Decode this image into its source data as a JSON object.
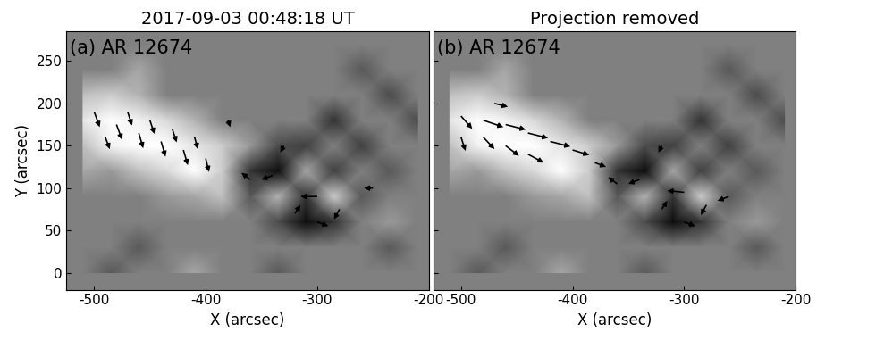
{
  "chart_data": [
    {
      "type": "magnetogram",
      "title": "2017-09-03 00:48:18 UT",
      "label": "(a) AR 12674",
      "x_label": "X (arcsec)",
      "y_label": "Y (arcsec)",
      "xlim": [
        -525,
        -200
      ],
      "xticks": [
        -500,
        -400,
        -300,
        -200
      ],
      "ylim": [
        -20,
        285
      ],
      "yticks": [
        0,
        50,
        100,
        150,
        200,
        250
      ],
      "color": "black",
      "bz_x": [
        -510,
        -485,
        -460,
        -435,
        -410,
        -385,
        -360,
        -335,
        -310,
        -285,
        -260,
        -235,
        -210
      ],
      "bz_y": [
        270,
        240,
        210,
        180,
        150,
        120,
        90,
        60,
        30,
        0
      ],
      "bz": [
        [
          0,
          0,
          0,
          0,
          0,
          0,
          0,
          0,
          0,
          0,
          0,
          0,
          0
        ],
        [
          0,
          0,
          0.3,
          0,
          0,
          0,
          0,
          0,
          0,
          0,
          -0.3,
          0,
          0
        ],
        [
          0.5,
          0.6,
          0.4,
          0,
          0,
          0,
          0,
          0,
          0,
          0,
          0,
          -0.4,
          0
        ],
        [
          0.8,
          1,
          0.9,
          0.7,
          0.4,
          0,
          0,
          0,
          0,
          -0.6,
          0,
          0,
          -0.4
        ],
        [
          0.5,
          0.9,
          1,
          1,
          0.8,
          0.6,
          0.2,
          -0.4,
          -0.5,
          0,
          -0.5,
          0,
          0
        ],
        [
          0.3,
          0.2,
          0.5,
          0.7,
          1,
          0.6,
          -0.6,
          -0.9,
          0.3,
          -0.5,
          0,
          -0.3,
          0
        ],
        [
          0,
          0,
          0,
          0.2,
          0.3,
          0.5,
          -0.3,
          0.4,
          -0.6,
          0.6,
          -0.3,
          0,
          0
        ],
        [
          0,
          0,
          0,
          0,
          0,
          0,
          0,
          -0.4,
          -0.9,
          -0.6,
          0,
          0.2,
          0
        ],
        [
          0,
          0,
          -0.3,
          0,
          0,
          0,
          0,
          0,
          0,
          0,
          0,
          -0.3,
          0
        ],
        [
          0,
          -0.3,
          0,
          0,
          0.3,
          0,
          0,
          -0.3,
          0,
          0,
          0,
          0,
          0
        ]
      ],
      "arrows": [
        [
          -500,
          190,
          5,
          -18
        ],
        [
          -480,
          175,
          5,
          -18
        ],
        [
          -460,
          165,
          4,
          -18
        ],
        [
          -440,
          155,
          4,
          -18
        ],
        [
          -420,
          145,
          4,
          -18
        ],
        [
          -400,
          135,
          3,
          -16
        ],
        [
          -470,
          190,
          4,
          -16
        ],
        [
          -450,
          180,
          4,
          -16
        ],
        [
          -430,
          170,
          4,
          -16
        ],
        [
          -490,
          160,
          4,
          -14
        ],
        [
          -410,
          160,
          3,
          -14
        ],
        [
          -360,
          110,
          -8,
          8
        ],
        [
          -340,
          115,
          -10,
          -5
        ],
        [
          -300,
          90,
          -15,
          0
        ],
        [
          -280,
          75,
          -5,
          -12
        ],
        [
          -300,
          60,
          10,
          -5
        ],
        [
          -320,
          70,
          5,
          10
        ],
        [
          -380,
          180,
          2,
          -8
        ],
        [
          -330,
          150,
          -3,
          -8
        ],
        [
          -250,
          100,
          -8,
          0
        ]
      ]
    },
    {
      "type": "magnetogram",
      "title": "Projection removed",
      "label": "(b) AR 12674",
      "x_label": "X (arcsec)",
      "tick_labels": "x",
      "xlim": [
        -525,
        -200
      ],
      "xticks": [
        -500,
        -400,
        -300,
        -200
      ],
      "ylim": [
        -20,
        285
      ],
      "yticks": [
        0,
        50,
        100,
        150,
        200,
        250
      ],
      "color": "black",
      "bz_x": [
        -510,
        -485,
        -460,
        -435,
        -410,
        -385,
        -360,
        -335,
        -310,
        -285,
        -260,
        -235,
        -210
      ],
      "bz_y": [
        270,
        240,
        210,
        180,
        150,
        120,
        90,
        60,
        30,
        0
      ],
      "bz": [
        [
          0,
          0,
          0,
          0,
          0,
          0,
          0,
          0,
          0,
          0,
          0,
          0,
          0
        ],
        [
          0,
          0,
          0.3,
          0,
          0,
          0,
          0,
          0,
          0,
          0,
          -0.3,
          0,
          0
        ],
        [
          0.5,
          0.6,
          0.4,
          0,
          0,
          0,
          0,
          0,
          0,
          0,
          0,
          -0.4,
          0
        ],
        [
          0.8,
          1,
          0.9,
          0.7,
          0.4,
          0,
          0,
          0,
          0,
          -0.6,
          0,
          0,
          -0.4
        ],
        [
          0.5,
          0.9,
          1,
          1,
          0.8,
          0.6,
          0.2,
          -0.4,
          -0.5,
          0,
          -0.5,
          0,
          0
        ],
        [
          0.3,
          0.2,
          0.5,
          0.7,
          1,
          0.6,
          -0.6,
          -0.9,
          0.3,
          -0.5,
          0,
          -0.3,
          0
        ],
        [
          0,
          0,
          0,
          0.2,
          0.3,
          0.5,
          -0.3,
          0.4,
          -0.6,
          0.6,
          -0.3,
          0,
          0
        ],
        [
          0,
          0,
          0,
          0,
          0,
          0,
          0,
          -0.4,
          -0.9,
          -0.6,
          0,
          0.2,
          0
        ],
        [
          0,
          0,
          -0.3,
          0,
          0,
          0,
          0,
          0,
          0,
          0,
          0,
          -0.3,
          0
        ],
        [
          0,
          -0.3,
          0,
          0,
          0.3,
          0,
          0,
          -0.3,
          0,
          0,
          0,
          0,
          0
        ]
      ],
      "arrows": [
        [
          -500,
          185,
          10,
          -15
        ],
        [
          -480,
          180,
          18,
          -8
        ],
        [
          -460,
          175,
          18,
          -6
        ],
        [
          -440,
          165,
          18,
          -6
        ],
        [
          -420,
          155,
          18,
          -6
        ],
        [
          -400,
          145,
          15,
          -6
        ],
        [
          -480,
          160,
          10,
          -14
        ],
        [
          -460,
          150,
          12,
          -12
        ],
        [
          -440,
          140,
          14,
          -10
        ],
        [
          -500,
          160,
          4,
          -16
        ],
        [
          -380,
          130,
          10,
          -5
        ],
        [
          -360,
          105,
          -8,
          8
        ],
        [
          -340,
          110,
          -10,
          -5
        ],
        [
          -300,
          95,
          -15,
          2
        ],
        [
          -280,
          80,
          -5,
          -12
        ],
        [
          -300,
          60,
          10,
          -5
        ],
        [
          -320,
          75,
          5,
          10
        ],
        [
          -260,
          90,
          -10,
          -5
        ],
        [
          -320,
          150,
          -3,
          -8
        ],
        [
          -470,
          200,
          12,
          -4
        ]
      ]
    }
  ]
}
